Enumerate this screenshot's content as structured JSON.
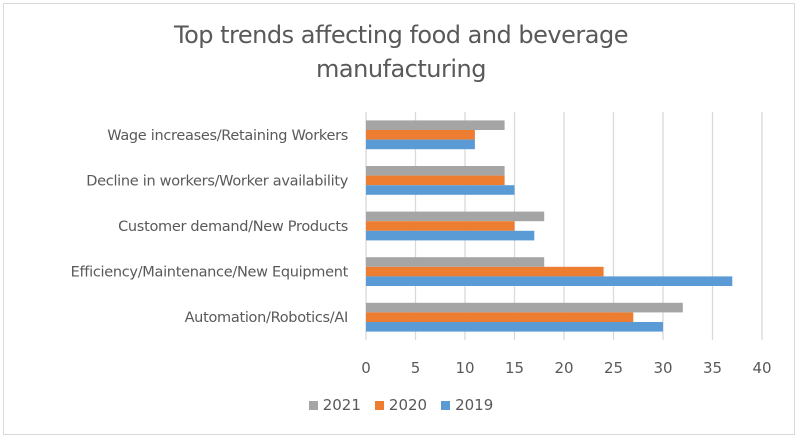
{
  "chart_data": {
    "type": "bar",
    "orientation": "horizontal",
    "title": "Top trends affecting food and beverage manufacturing",
    "title_lines": [
      "Top trends affecting food and beverage",
      "manufacturing"
    ],
    "categories": [
      "Wage increases/Retaining Workers",
      "Decline in workers/Worker availability",
      "Customer demand/New Products",
      "Efficiency/Maintenance/New Equipment",
      "Automation/Robotics/AI"
    ],
    "series": [
      {
        "name": "2021",
        "color": "#a5a5a5",
        "values": [
          14,
          14,
          18,
          18,
          32
        ]
      },
      {
        "name": "2020",
        "color": "#ed7d31",
        "values": [
          11,
          14,
          15,
          24,
          27
        ]
      },
      {
        "name": "2019",
        "color": "#5b9bd5",
        "values": [
          11,
          15,
          17,
          37,
          30
        ]
      }
    ],
    "xlabel": "",
    "ylabel": "",
    "xlim": [
      0,
      40
    ],
    "xticks": [
      0,
      5,
      10,
      15,
      20,
      25,
      30,
      35,
      40
    ],
    "xtick_labels": [
      "0",
      "5",
      "10",
      "15",
      "20",
      "25",
      "30",
      "35",
      "40"
    ],
    "grid": true,
    "legend_position": "bottom",
    "legend_order": [
      "2021",
      "2020",
      "2019"
    ]
  }
}
